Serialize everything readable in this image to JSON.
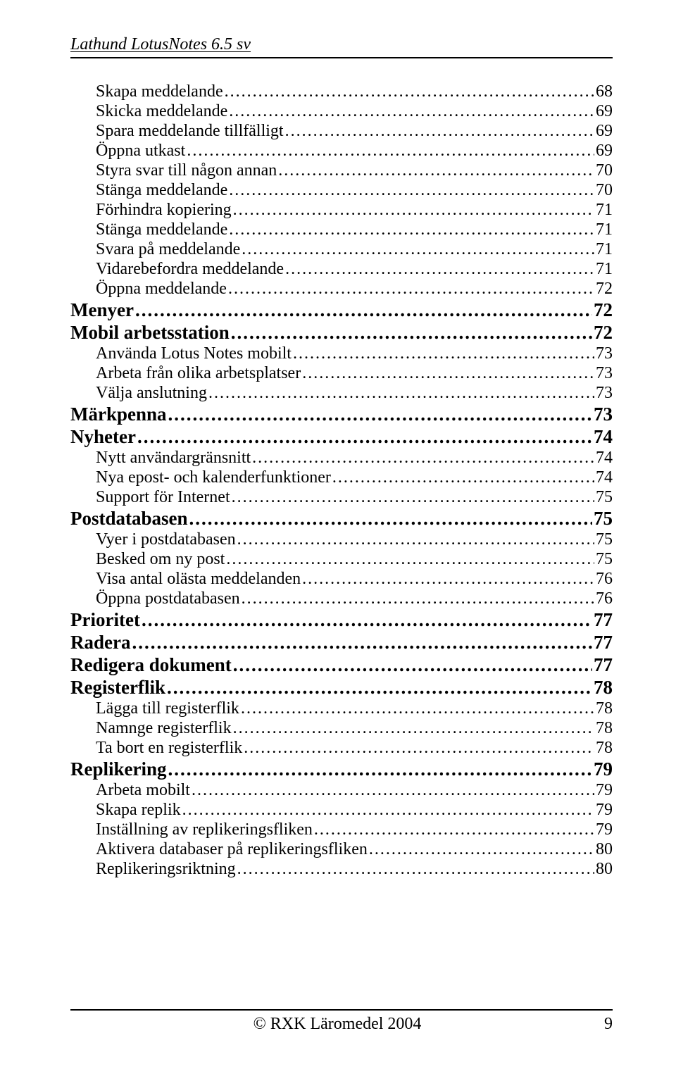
{
  "header": "Lathund LotusNotes 6.5 sv",
  "toc": [
    {
      "label": "Skapa meddelande",
      "page": "68",
      "level": "sub"
    },
    {
      "label": "Skicka meddelande",
      "page": "69",
      "level": "sub"
    },
    {
      "label": "Spara meddelande tillfälligt",
      "page": "69",
      "level": "sub"
    },
    {
      "label": "Öppna utkast",
      "page": "69",
      "level": "sub"
    },
    {
      "label": "Styra svar till någon annan",
      "page": "70",
      "level": "sub"
    },
    {
      "label": "Stänga meddelande",
      "page": "70",
      "level": "sub"
    },
    {
      "label": "Förhindra kopiering",
      "page": "71",
      "level": "sub"
    },
    {
      "label": "Stänga meddelande",
      "page": "71",
      "level": "sub"
    },
    {
      "label": "Svara på meddelande",
      "page": "71",
      "level": "sub"
    },
    {
      "label": "Vidarebefordra meddelande",
      "page": "71",
      "level": "sub"
    },
    {
      "label": "Öppna meddelande",
      "page": "72",
      "level": "sub"
    },
    {
      "label": "Menyer",
      "page": "72",
      "level": "section"
    },
    {
      "label": "Mobil arbetsstation",
      "page": "72",
      "level": "section"
    },
    {
      "label": "Använda Lotus Notes mobilt",
      "page": "73",
      "level": "sub"
    },
    {
      "label": "Arbeta från olika arbetsplatser",
      "page": "73",
      "level": "sub"
    },
    {
      "label": "Välja anslutning",
      "page": "73",
      "level": "sub"
    },
    {
      "label": "Märkpenna",
      "page": "73",
      "level": "section"
    },
    {
      "label": "Nyheter",
      "page": "74",
      "level": "section"
    },
    {
      "label": "Nytt användargränsnitt",
      "page": "74",
      "level": "sub"
    },
    {
      "label": "Nya epost- och kalenderfunktioner",
      "page": "74",
      "level": "sub"
    },
    {
      "label": "Support för Internet",
      "page": "75",
      "level": "sub"
    },
    {
      "label": "Postdatabasen",
      "page": "75",
      "level": "section"
    },
    {
      "label": "Vyer i postdatabasen",
      "page": "75",
      "level": "sub"
    },
    {
      "label": "Besked om ny post",
      "page": "75",
      "level": "sub"
    },
    {
      "label": "Visa antal olästa meddelanden",
      "page": "76",
      "level": "sub"
    },
    {
      "label": "Öppna postdatabasen",
      "page": "76",
      "level": "sub"
    },
    {
      "label": "Prioritet",
      "page": "77",
      "level": "section"
    },
    {
      "label": "Radera",
      "page": "77",
      "level": "section"
    },
    {
      "label": "Redigera dokument",
      "page": "77",
      "level": "section"
    },
    {
      "label": "Registerflik",
      "page": "78",
      "level": "section"
    },
    {
      "label": "Lägga till registerflik",
      "page": "78",
      "level": "sub"
    },
    {
      "label": "Namnge registerflik",
      "page": "78",
      "level": "sub"
    },
    {
      "label": "Ta bort en registerflik",
      "page": "78",
      "level": "sub"
    },
    {
      "label": "Replikering",
      "page": "79",
      "level": "section"
    },
    {
      "label": "Arbeta mobilt",
      "page": "79",
      "level": "sub"
    },
    {
      "label": "Skapa replik",
      "page": "79",
      "level": "sub"
    },
    {
      "label": "Inställning av replikeringsfliken",
      "page": "79",
      "level": "sub"
    },
    {
      "label": "Aktivera databaser på replikeringsfliken",
      "page": "80",
      "level": "sub"
    },
    {
      "label": "Replikeringsriktning",
      "page": "80",
      "level": "sub"
    }
  ],
  "footer": {
    "copyright": "RXK Läromedel 2004",
    "page_number": "9"
  }
}
